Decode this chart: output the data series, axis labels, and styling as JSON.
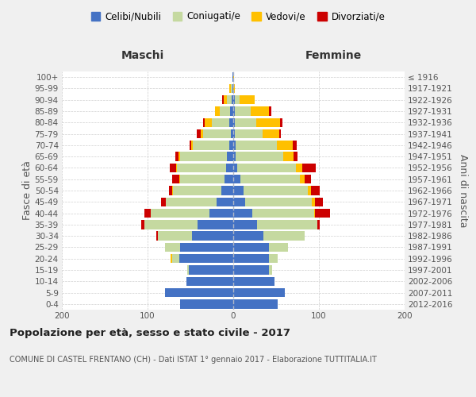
{
  "age_groups": [
    "0-4",
    "5-9",
    "10-14",
    "15-19",
    "20-24",
    "25-29",
    "30-34",
    "35-39",
    "40-44",
    "45-49",
    "50-54",
    "55-59",
    "60-64",
    "65-69",
    "70-74",
    "75-79",
    "80-84",
    "85-89",
    "90-94",
    "95-99",
    "100+"
  ],
  "birth_years": [
    "2012-2016",
    "2007-2011",
    "2002-2006",
    "1997-2001",
    "1992-1996",
    "1987-1991",
    "1982-1986",
    "1977-1981",
    "1972-1976",
    "1967-1971",
    "1962-1966",
    "1957-1961",
    "1952-1956",
    "1947-1951",
    "1942-1946",
    "1937-1941",
    "1932-1936",
    "1927-1931",
    "1922-1926",
    "1917-1921",
    "≤ 1916"
  ],
  "colors": {
    "celibi": "#4472c4",
    "coniugati": "#c5d9a0",
    "vedovi": "#ffc000",
    "divorziati": "#cc0000"
  },
  "maschi": {
    "celibi": [
      62,
      80,
      55,
      52,
      63,
      62,
      48,
      42,
      28,
      19,
      14,
      10,
      8,
      7,
      5,
      3,
      5,
      4,
      2,
      1,
      1
    ],
    "coniugati": [
      0,
      0,
      0,
      2,
      8,
      18,
      40,
      62,
      68,
      60,
      56,
      52,
      58,
      55,
      42,
      32,
      20,
      12,
      5,
      2,
      0
    ],
    "vedovi": [
      0,
      0,
      0,
      0,
      2,
      0,
      0,
      0,
      0,
      0,
      1,
      1,
      1,
      2,
      2,
      3,
      8,
      5,
      4,
      2,
      0
    ],
    "divorziati": [
      0,
      0,
      0,
      0,
      0,
      0,
      2,
      3,
      8,
      5,
      4,
      8,
      7,
      4,
      2,
      5,
      2,
      0,
      2,
      0,
      0
    ]
  },
  "femmine": {
    "celibi": [
      52,
      60,
      48,
      42,
      42,
      42,
      35,
      28,
      22,
      14,
      12,
      8,
      5,
      3,
      3,
      2,
      2,
      2,
      2,
      0,
      0
    ],
    "coniugati": [
      0,
      0,
      0,
      3,
      10,
      22,
      48,
      70,
      72,
      78,
      75,
      70,
      68,
      55,
      48,
      32,
      25,
      18,
      5,
      0,
      0
    ],
    "vedovi": [
      0,
      0,
      0,
      0,
      0,
      0,
      0,
      0,
      1,
      3,
      4,
      5,
      8,
      12,
      18,
      20,
      28,
      22,
      18,
      2,
      1
    ],
    "divorziati": [
      0,
      0,
      0,
      0,
      0,
      0,
      0,
      3,
      18,
      10,
      10,
      8,
      15,
      5,
      5,
      2,
      2,
      2,
      0,
      0,
      0
    ]
  },
  "xlim": 200,
  "xticks": [
    200,
    100,
    0,
    100,
    200
  ],
  "title_main": "Popolazione per età, sesso e stato civile - 2017",
  "title_sub": "COMUNE DI CASTEL FRENTANO (CH) - Dati ISTAT 1° gennaio 2017 - Elaborazione TUTTITALIA.IT",
  "legend_labels": [
    "Celibi/Nubili",
    "Coniugati/e",
    "Vedovi/e",
    "Divorziati/e"
  ],
  "ylabel_left": "Fasce di età",
  "ylabel_right": "Anni di nascita",
  "xlabel_maschi": "Maschi",
  "xlabel_femmine": "Femmine",
  "bg_color": "#f0f0f0",
  "plot_bg": "#ffffff"
}
